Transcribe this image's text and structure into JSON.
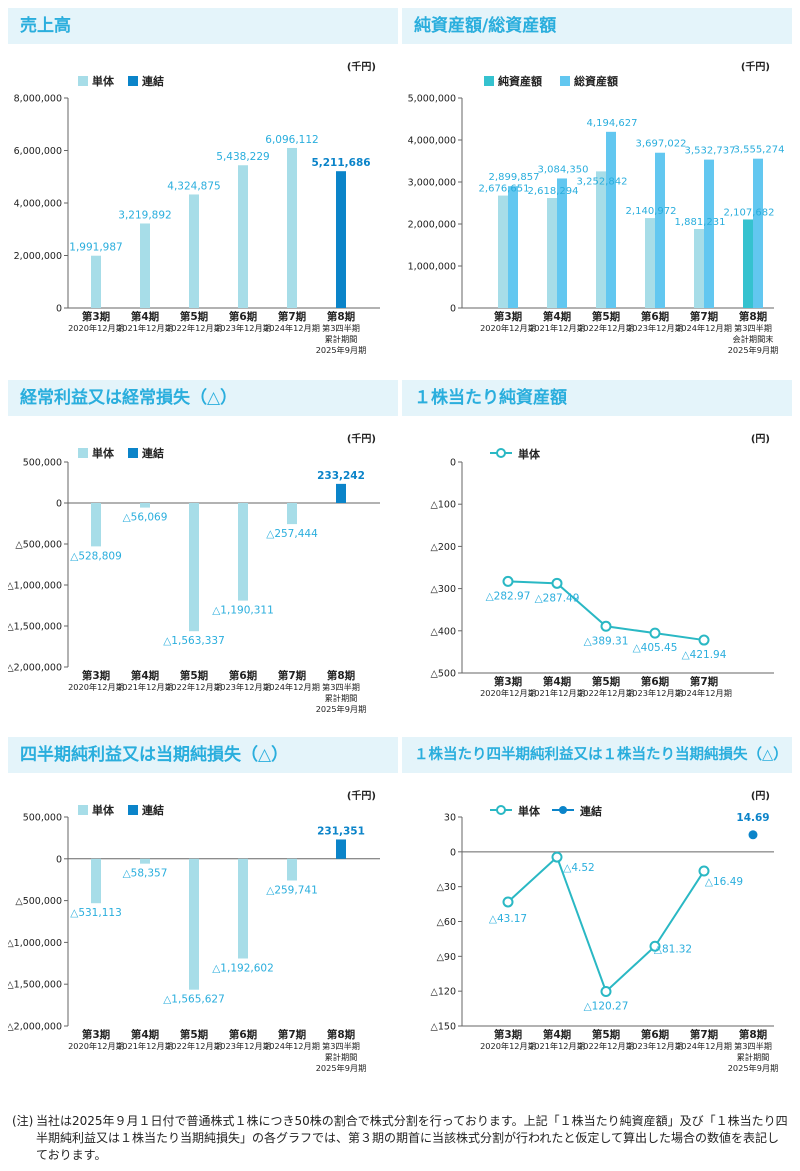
{
  "panels": [
    {
      "id": "sales",
      "title": "売上高"
    },
    {
      "id": "assets",
      "title": "純資産額/総資産額"
    },
    {
      "id": "ordinary",
      "title": "経常利益又は経常損失（△）"
    },
    {
      "id": "bps",
      "title": "１株当たり純資産額"
    },
    {
      "id": "netincome",
      "title": "四半期純利益又は当期純損失（△）"
    },
    {
      "id": "eps",
      "title": "１株当たり四半期純利益又は１株当たり当期純損失（△）"
    }
  ],
  "note": {
    "label": "(注)",
    "text": "当社は2025年９月１日付で普通株式１株につき50株の割合で株式分割を行っております。上記「１株当たり純資産額」及び「１株当たり四半期純利益又は１株当たり当期純損失」の各グラフでは、第３期の期首に当該株式分割が行われたと仮定して算出した場合の数値を表記しております。"
  },
  "colors": {
    "title": "#2aaedd",
    "title_bg": "#e4f4fa",
    "single": "#a7dde8",
    "consol": "#0b84c9",
    "net": "#35c2cf",
    "total": "#62c7f0",
    "line": "#2ab8c4",
    "text": "#2aaedd"
  },
  "chart_data": [
    {
      "id": "sales",
      "type": "bar",
      "unit": "(千円)",
      "title": "売上高",
      "legend": [
        "単体",
        "連結"
      ],
      "categories": [
        [
          "第3期",
          "2020年12月期"
        ],
        [
          "第4期",
          "2021年12月期"
        ],
        [
          "第5期",
          "2022年12月期"
        ],
        [
          "第6期",
          "2023年12月期"
        ],
        [
          "第7期",
          "2024年12月期"
        ],
        [
          "第8期",
          "第3四半期",
          "累計期間",
          "2025年9月期"
        ]
      ],
      "series": [
        {
          "name": "単体",
          "values": [
            1991987,
            3219892,
            4324875,
            5438229,
            6096112,
            null
          ]
        },
        {
          "name": "連結",
          "values": [
            null,
            null,
            null,
            null,
            null,
            5211686
          ]
        }
      ],
      "labels": [
        "1,991,987",
        "3,219,892",
        "4,324,875",
        "5,438,229",
        "6,096,112",
        "5,211,686"
      ],
      "yticks": [
        0,
        2000000,
        4000000,
        6000000,
        8000000
      ],
      "ytick_labels": [
        "0",
        "2,000,000",
        "4,000,000",
        "6,000,000",
        "8,000,000"
      ],
      "ylim": [
        0,
        8000000
      ]
    },
    {
      "id": "assets",
      "type": "bar",
      "unit": "(千円)",
      "title": "純資産額/総資産額",
      "legend": [
        "純資産額",
        "総資産額"
      ],
      "categories": [
        [
          "第3期",
          "2020年12月期"
        ],
        [
          "第4期",
          "2021年12月期"
        ],
        [
          "第5期",
          "2022年12月期"
        ],
        [
          "第6期",
          "2023年12月期"
        ],
        [
          "第7期",
          "2024年12月期"
        ],
        [
          "第8期",
          "第3四半期",
          "会計期間末",
          "2025年9月期"
        ]
      ],
      "series": [
        {
          "name": "純資産額",
          "values": [
            2676651,
            2618294,
            3252842,
            2140972,
            1881231,
            2107682
          ]
        },
        {
          "name": "総資産額",
          "values": [
            2899857,
            3084350,
            4194627,
            3697022,
            3532737,
            3555274
          ]
        }
      ],
      "labels_net": [
        "2,676,651",
        "2,618,294",
        "3,252,842",
        "2,140,972",
        "1,881,231",
        "2,107,682"
      ],
      "labels_total": [
        "2,899,857",
        "3,084,350",
        "4,194,627",
        "3,697,022",
        "3,532,737",
        "3,555,274"
      ],
      "yticks": [
        0,
        1000000,
        2000000,
        3000000,
        4000000,
        5000000
      ],
      "ytick_labels": [
        "0",
        "1,000,000",
        "2,000,000",
        "3,000,000",
        "4,000,000",
        "5,000,000"
      ],
      "ylim": [
        0,
        5000000
      ]
    },
    {
      "id": "ordinary",
      "type": "bar",
      "unit": "(千円)",
      "title": "経常利益又は経常損失（△）",
      "legend": [
        "単体",
        "連結"
      ],
      "categories": [
        [
          "第3期",
          "2020年12月期"
        ],
        [
          "第4期",
          "2021年12月期"
        ],
        [
          "第5期",
          "2022年12月期"
        ],
        [
          "第6期",
          "2023年12月期"
        ],
        [
          "第7期",
          "2024年12月期"
        ],
        [
          "第8期",
          "第3四半期",
          "累計期間",
          "2025年9月期"
        ]
      ],
      "series": [
        {
          "name": "単体",
          "values": [
            -528809,
            -56069,
            -1563337,
            -1190311,
            -257444,
            null
          ]
        },
        {
          "name": "連結",
          "values": [
            null,
            null,
            null,
            null,
            null,
            233242
          ]
        }
      ],
      "labels": [
        "△528,809",
        "△56,069",
        "△1,563,337",
        "△1,190,311",
        "△257,444",
        "233,242"
      ],
      "yticks": [
        500000,
        0,
        -500000,
        -1000000,
        -1500000,
        -2000000
      ],
      "ytick_labels": [
        "500,000",
        "0",
        "△500,000",
        "△1,000,000",
        "△1,500,000",
        "△2,000,000"
      ],
      "ylim": [
        -2000000,
        500000
      ]
    },
    {
      "id": "bps",
      "type": "line",
      "unit": "(円)",
      "title": "１株当たり純資産額",
      "legend": [
        "単体"
      ],
      "categories": [
        [
          "第3期",
          "2020年12月期"
        ],
        [
          "第4期",
          "2021年12月期"
        ],
        [
          "第5期",
          "2022年12月期"
        ],
        [
          "第6期",
          "2023年12月期"
        ],
        [
          "第7期",
          "2024年12月期"
        ]
      ],
      "series": [
        {
          "name": "単体",
          "values": [
            -282.97,
            -287.49,
            -389.31,
            -405.45,
            -421.94
          ]
        }
      ],
      "labels": [
        "△282.97",
        "△287.49",
        "△389.31",
        "△405.45",
        "△421.94"
      ],
      "yticks": [
        0,
        -100,
        -200,
        -300,
        -400,
        -500
      ],
      "ytick_labels": [
        "0",
        "△100",
        "△200",
        "△300",
        "△400",
        "△500"
      ],
      "ylim": [
        -500,
        0
      ]
    },
    {
      "id": "netincome",
      "type": "bar",
      "unit": "(千円)",
      "title": "四半期純利益又は当期純損失（△）",
      "legend": [
        "単体",
        "連結"
      ],
      "categories": [
        [
          "第3期",
          "2020年12月期"
        ],
        [
          "第4期",
          "2021年12月期"
        ],
        [
          "第5期",
          "2022年12月期"
        ],
        [
          "第6期",
          "2023年12月期"
        ],
        [
          "第7期",
          "2024年12月期"
        ],
        [
          "第8期",
          "第3四半期",
          "累計期間",
          "2025年9月期"
        ]
      ],
      "series": [
        {
          "name": "単体",
          "values": [
            -531113,
            -58357,
            -1565627,
            -1192602,
            -259741,
            null
          ]
        },
        {
          "name": "連結",
          "values": [
            null,
            null,
            null,
            null,
            null,
            231351
          ]
        }
      ],
      "labels": [
        "△531,113",
        "△58,357",
        "△1,565,627",
        "△1,192,602",
        "△259,741",
        "231,351"
      ],
      "yticks": [
        500000,
        0,
        -500000,
        -1000000,
        -1500000,
        -2000000
      ],
      "ytick_labels": [
        "500,000",
        "0",
        "△500,000",
        "△1,000,000",
        "△1,500,000",
        "△2,000,000"
      ],
      "ylim": [
        -2000000,
        500000
      ]
    },
    {
      "id": "eps",
      "type": "line",
      "unit": "(円)",
      "title": "１株当たり四半期純利益又は１株当たり当期純損失（△）",
      "legend": [
        "単体",
        "連結"
      ],
      "categories": [
        [
          "第3期",
          "2020年12月期"
        ],
        [
          "第4期",
          "2021年12月期"
        ],
        [
          "第5期",
          "2022年12月期"
        ],
        [
          "第6期",
          "2023年12月期"
        ],
        [
          "第7期",
          "2024年12月期"
        ],
        [
          "第8期",
          "第3四半期",
          "累計期間",
          "2025年9月期"
        ]
      ],
      "series": [
        {
          "name": "単体",
          "values": [
            -43.17,
            -4.52,
            -120.27,
            -81.32,
            -16.49,
            null
          ]
        },
        {
          "name": "連結",
          "values": [
            null,
            null,
            null,
            null,
            null,
            14.69
          ]
        }
      ],
      "labels": [
        "△43.17",
        "△4.52",
        "△120.27",
        "△81.32",
        "△16.49",
        "14.69"
      ],
      "yticks": [
        30,
        0,
        -30,
        -60,
        -90,
        -120,
        -150
      ],
      "ytick_labels": [
        "30",
        "0",
        "△30",
        "△60",
        "△90",
        "△120",
        "△150"
      ],
      "ylim": [
        -150,
        30
      ]
    }
  ]
}
